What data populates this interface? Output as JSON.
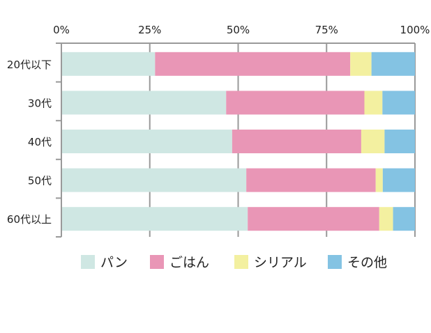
{
  "chart_data": {
    "type": "bar",
    "stacked": true,
    "orientation": "horizontal",
    "title": "",
    "xlabel": "",
    "ylabel": "",
    "xlim": [
      0,
      100
    ],
    "x_ticks": [
      "0%",
      "25%",
      "50%",
      "75%",
      "100%"
    ],
    "categories": [
      "20代以下",
      "30代",
      "40代",
      "50代",
      "60代以上"
    ],
    "series": [
      {
        "name": "パン",
        "color": "#cfe7e3",
        "values": [
          26.5,
          46.6,
          48.3,
          52.3,
          52.7
        ]
      },
      {
        "name": "ごはん",
        "color": "#e996b6",
        "values": [
          55.2,
          39.1,
          36.5,
          36.6,
          37.2
        ]
      },
      {
        "name": "シリアル",
        "color": "#f3f0a0",
        "values": [
          6.0,
          5.1,
          6.6,
          2.0,
          3.9
        ]
      },
      {
        "name": "その他",
        "color": "#84c3e3",
        "values": [
          12.3,
          9.2,
          8.6,
          9.1,
          6.2
        ]
      }
    ],
    "grid": true,
    "legend_position": "bottom"
  }
}
